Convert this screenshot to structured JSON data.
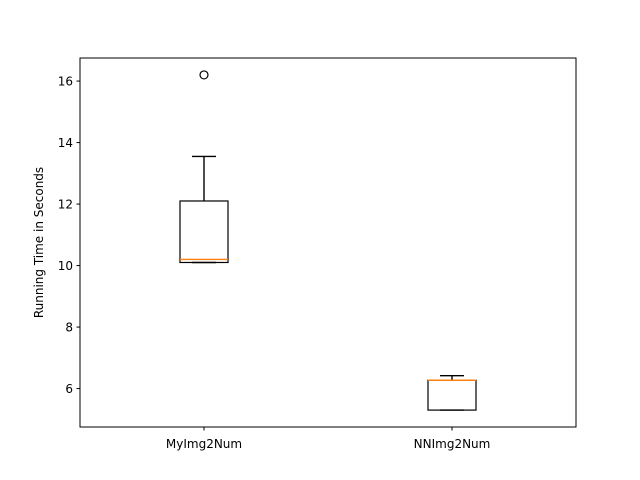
{
  "chart_data": {
    "type": "box",
    "title": "",
    "xlabel": "",
    "ylabel": "Running Time in Seconds",
    "ylim": [
      4.75,
      16.75
    ],
    "yticks": [
      6,
      8,
      10,
      12,
      14,
      16
    ],
    "ytick_labels": [
      "6",
      "8",
      "10",
      "12",
      "14",
      "16"
    ],
    "grid": false,
    "categories": [
      "MyImg2Num",
      "NNImg2Num"
    ],
    "boxes": [
      {
        "label": "MyImg2Num",
        "whisker_low": 10.1,
        "q1": 10.1,
        "median": 10.2,
        "q3": 12.1,
        "whisker_high": 13.55,
        "outliers": [
          16.2
        ]
      },
      {
        "label": "NNImg2Num",
        "whisker_low": 5.3,
        "q1": 5.3,
        "median": 6.27,
        "q3": 6.27,
        "whisker_high": 6.42,
        "outliers": []
      }
    ],
    "colors": {
      "box": "#000000",
      "median": "#ff7f0e",
      "background": "#ffffff"
    }
  }
}
